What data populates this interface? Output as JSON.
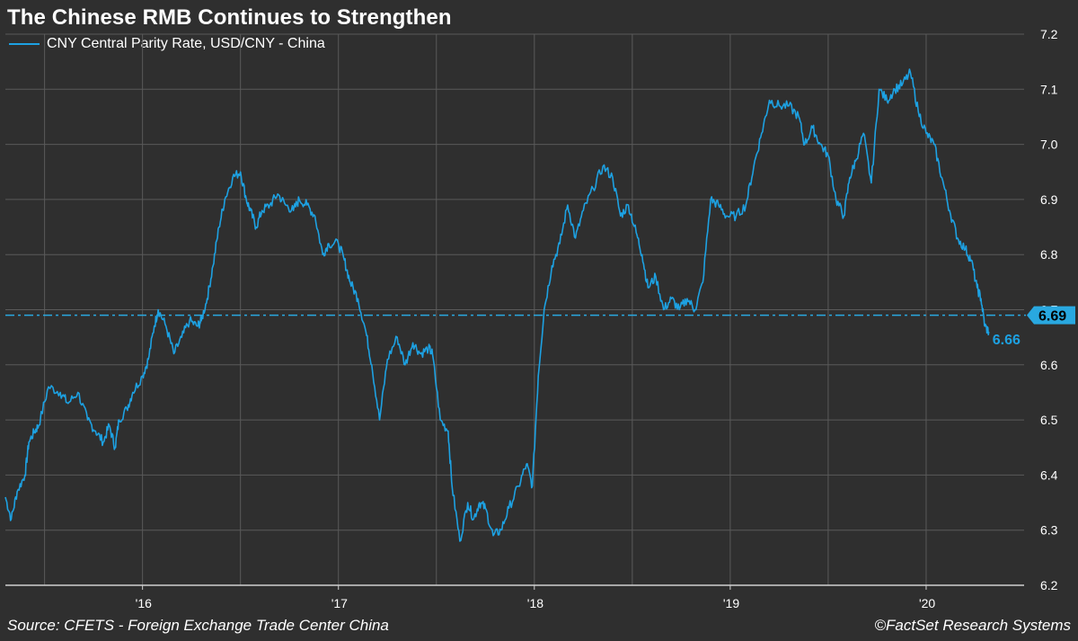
{
  "chart_data": {
    "type": "line",
    "title": "The Chinese RMB Continues to Strengthen",
    "source": "Source: CFETS - Foreign Exchange Trade Center China",
    "credit": "©FactSet Research Systems",
    "ylim": [
      6.2,
      7.2
    ],
    "y_ticks": [
      "7.2",
      "7.1",
      "7.0",
      "6.9",
      "6.8",
      "6.7",
      "6.6",
      "6.5",
      "6.4",
      "6.3",
      "6.2"
    ],
    "x_ticks": [
      {
        "label": "'16",
        "date": 2016.0
      },
      {
        "label": "'17",
        "date": 2017.0
      },
      {
        "label": "'18",
        "date": 2018.0
      },
      {
        "label": "'19",
        "date": 2019.0
      },
      {
        "label": "'20",
        "date": 2020.0
      }
    ],
    "xlim": [
      2015.3,
      2020.5
    ],
    "grid": true,
    "legend_position": "top-left",
    "reference_line": {
      "value": 6.69,
      "label": "6.69",
      "color": "#29a8e0"
    },
    "last_value": {
      "value": 6.66,
      "label": "6.66"
    },
    "series": [
      {
        "name": "CNY Central Parity Rate, USD/CNY - China",
        "color": "#1da1e2",
        "x": [
          2015.3,
          2015.33,
          2015.36,
          2015.4,
          2015.42,
          2015.45,
          2015.47,
          2015.52,
          2015.58,
          2015.62,
          2015.67,
          2015.72,
          2015.76,
          2015.8,
          2015.83,
          2015.86,
          2015.88,
          2015.92,
          2015.95,
          2016.0,
          2016.03,
          2016.06,
          2016.08,
          2016.12,
          2016.16,
          2016.2,
          2016.24,
          2016.28,
          2016.3,
          2016.33,
          2016.36,
          2016.39,
          2016.42,
          2016.46,
          2016.5,
          2016.53,
          2016.55,
          2016.58,
          2016.61,
          2016.65,
          2016.69,
          2016.73,
          2016.77,
          2016.8,
          2016.84,
          2016.88,
          2016.92,
          2016.95,
          2017.0,
          2017.03,
          2017.06,
          2017.1,
          2017.14,
          2017.17,
          2017.21,
          2017.25,
          2017.3,
          2017.34,
          2017.38,
          2017.42,
          2017.46,
          2017.48,
          2017.52,
          2017.56,
          2017.58,
          2017.62,
          2017.66,
          2017.69,
          2017.72,
          2017.75,
          2017.79,
          2017.83,
          2017.87,
          2017.92,
          2017.96,
          2017.99,
          2018.02,
          2018.05,
          2018.09,
          2018.13,
          2018.17,
          2018.21,
          2018.25,
          2018.3,
          2018.35,
          2018.4,
          2018.44,
          2018.48,
          2018.52,
          2018.55,
          2018.58,
          2018.62,
          2018.66,
          2018.7,
          2018.74,
          2018.78,
          2018.82,
          2018.86,
          2018.9,
          2018.94,
          2018.98,
          2019.03,
          2019.08,
          2019.12,
          2019.16,
          2019.2,
          2019.25,
          2019.3,
          2019.35,
          2019.38,
          2019.42,
          2019.46,
          2019.5,
          2019.54,
          2019.58,
          2019.61,
          2019.64,
          2019.68,
          2019.72,
          2019.76,
          2019.8,
          2019.84,
          2019.88,
          2019.92,
          2019.96,
          2020.0,
          2020.04,
          2020.08,
          2020.12,
          2020.16,
          2020.2,
          2020.23,
          2020.26,
          2020.28,
          2020.3,
          2020.32
        ],
        "values": [
          6.36,
          6.32,
          6.37,
          6.4,
          6.46,
          6.48,
          6.49,
          6.56,
          6.55,
          6.53,
          6.55,
          6.5,
          6.48,
          6.46,
          6.49,
          6.45,
          6.5,
          6.52,
          6.55,
          6.58,
          6.61,
          6.67,
          6.7,
          6.67,
          6.62,
          6.65,
          6.68,
          6.67,
          6.68,
          6.72,
          6.78,
          6.85,
          6.9,
          6.94,
          6.95,
          6.9,
          6.88,
          6.85,
          6.88,
          6.89,
          6.91,
          6.89,
          6.88,
          6.9,
          6.89,
          6.87,
          6.8,
          6.82,
          6.82,
          6.79,
          6.75,
          6.72,
          6.66,
          6.6,
          6.5,
          6.61,
          6.65,
          6.6,
          6.64,
          6.62,
          6.63,
          6.62,
          6.5,
          6.48,
          6.38,
          6.28,
          6.35,
          6.32,
          6.35,
          6.34,
          6.29,
          6.3,
          6.34,
          6.38,
          6.42,
          6.38,
          6.58,
          6.7,
          6.78,
          6.82,
          6.89,
          6.83,
          6.88,
          6.92,
          6.96,
          6.94,
          6.87,
          6.89,
          6.84,
          6.8,
          6.74,
          6.76,
          6.7,
          6.72,
          6.7,
          6.72,
          6.7,
          6.75,
          6.9,
          6.89,
          6.87,
          6.87,
          6.89,
          6.96,
          7.02,
          7.08,
          7.07,
          7.07,
          7.05,
          7.0,
          7.03,
          7.0,
          6.98,
          6.9,
          6.87,
          6.94,
          6.97,
          7.02,
          6.93,
          7.1,
          7.08,
          7.1,
          7.11,
          7.13,
          7.06,
          7.02,
          7.0,
          6.94,
          6.88,
          6.83,
          6.81,
          6.79,
          6.74,
          6.72,
          6.67,
          6.66
        ]
      }
    ]
  }
}
